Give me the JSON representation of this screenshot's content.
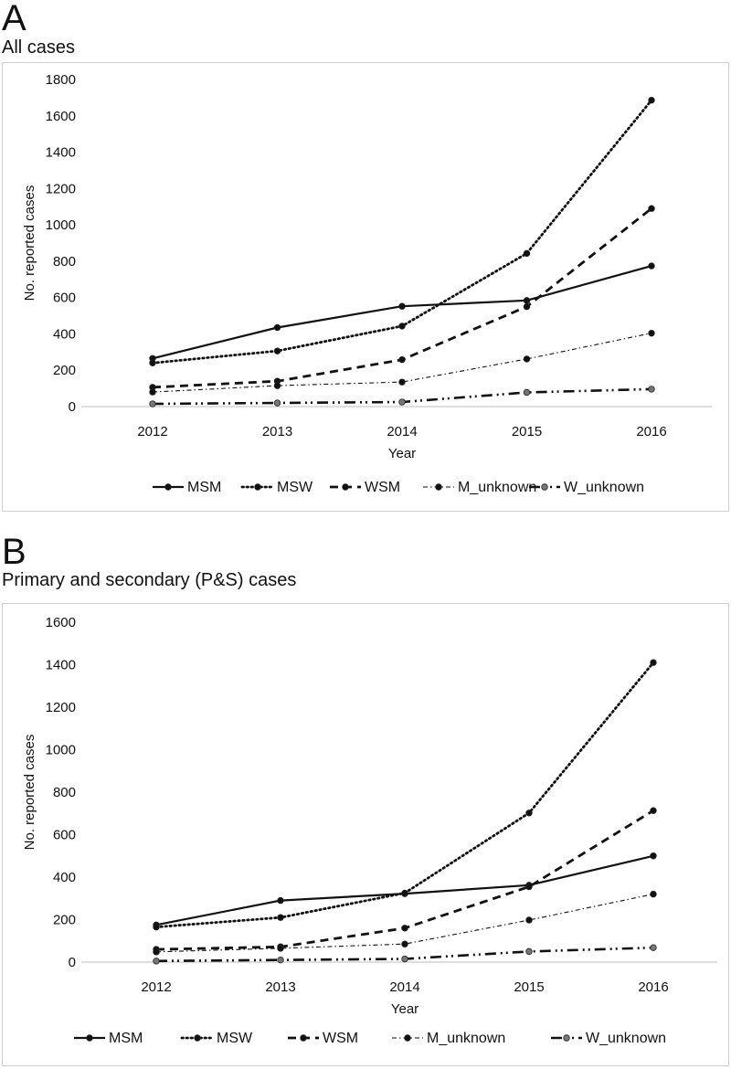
{
  "chart_data": [
    {
      "type": "line",
      "panel_label": "A",
      "title": "All cases",
      "xlabel": "Year",
      "ylabel": "No. reported cases",
      "categories": [
        "2012",
        "2013",
        "2014",
        "2015",
        "2016"
      ],
      "ylim": [
        0,
        1800
      ],
      "yticks": [
        0,
        200,
        400,
        600,
        800,
        1000,
        1200,
        1400,
        1600,
        1800
      ],
      "legend_position": "bottom",
      "series": [
        {
          "name": "MSM",
          "style": "solid",
          "values": [
            265,
            435,
            552,
            584,
            774
          ]
        },
        {
          "name": "MSW",
          "style": "dotted",
          "values": [
            240,
            306,
            443,
            843,
            1686
          ]
        },
        {
          "name": "WSM",
          "style": "dashed",
          "values": [
            106,
            140,
            258,
            550,
            1090
          ]
        },
        {
          "name": "M_unknown",
          "style": "dashdot-thin",
          "values": [
            80,
            115,
            135,
            262,
            404
          ]
        },
        {
          "name": "W_unknown",
          "style": "dashdotdot",
          "values": [
            15,
            20,
            25,
            78,
            96
          ]
        }
      ]
    },
    {
      "type": "line",
      "panel_label": "B",
      "title": "Primary and secondary (P&S) cases",
      "xlabel": "Year",
      "ylabel": "No. reported cases",
      "categories": [
        "2012",
        "2013",
        "2014",
        "2015",
        "2016"
      ],
      "ylim": [
        0,
        1600
      ],
      "yticks": [
        0,
        200,
        400,
        600,
        800,
        1000,
        1200,
        1400,
        1600
      ],
      "legend_position": "bottom",
      "series": [
        {
          "name": "MSM",
          "style": "solid",
          "values": [
            175,
            290,
            322,
            362,
            500
          ]
        },
        {
          "name": "MSW",
          "style": "dotted",
          "values": [
            165,
            210,
            325,
            702,
            1410
          ]
        },
        {
          "name": "WSM",
          "style": "dashed",
          "values": [
            60,
            72,
            160,
            355,
            713
          ]
        },
        {
          "name": "M_unknown",
          "style": "dashdot-thin",
          "values": [
            48,
            65,
            85,
            198,
            320
          ]
        },
        {
          "name": "W_unknown",
          "style": "dashdotdot",
          "values": [
            5,
            10,
            15,
            50,
            68
          ]
        }
      ]
    }
  ]
}
